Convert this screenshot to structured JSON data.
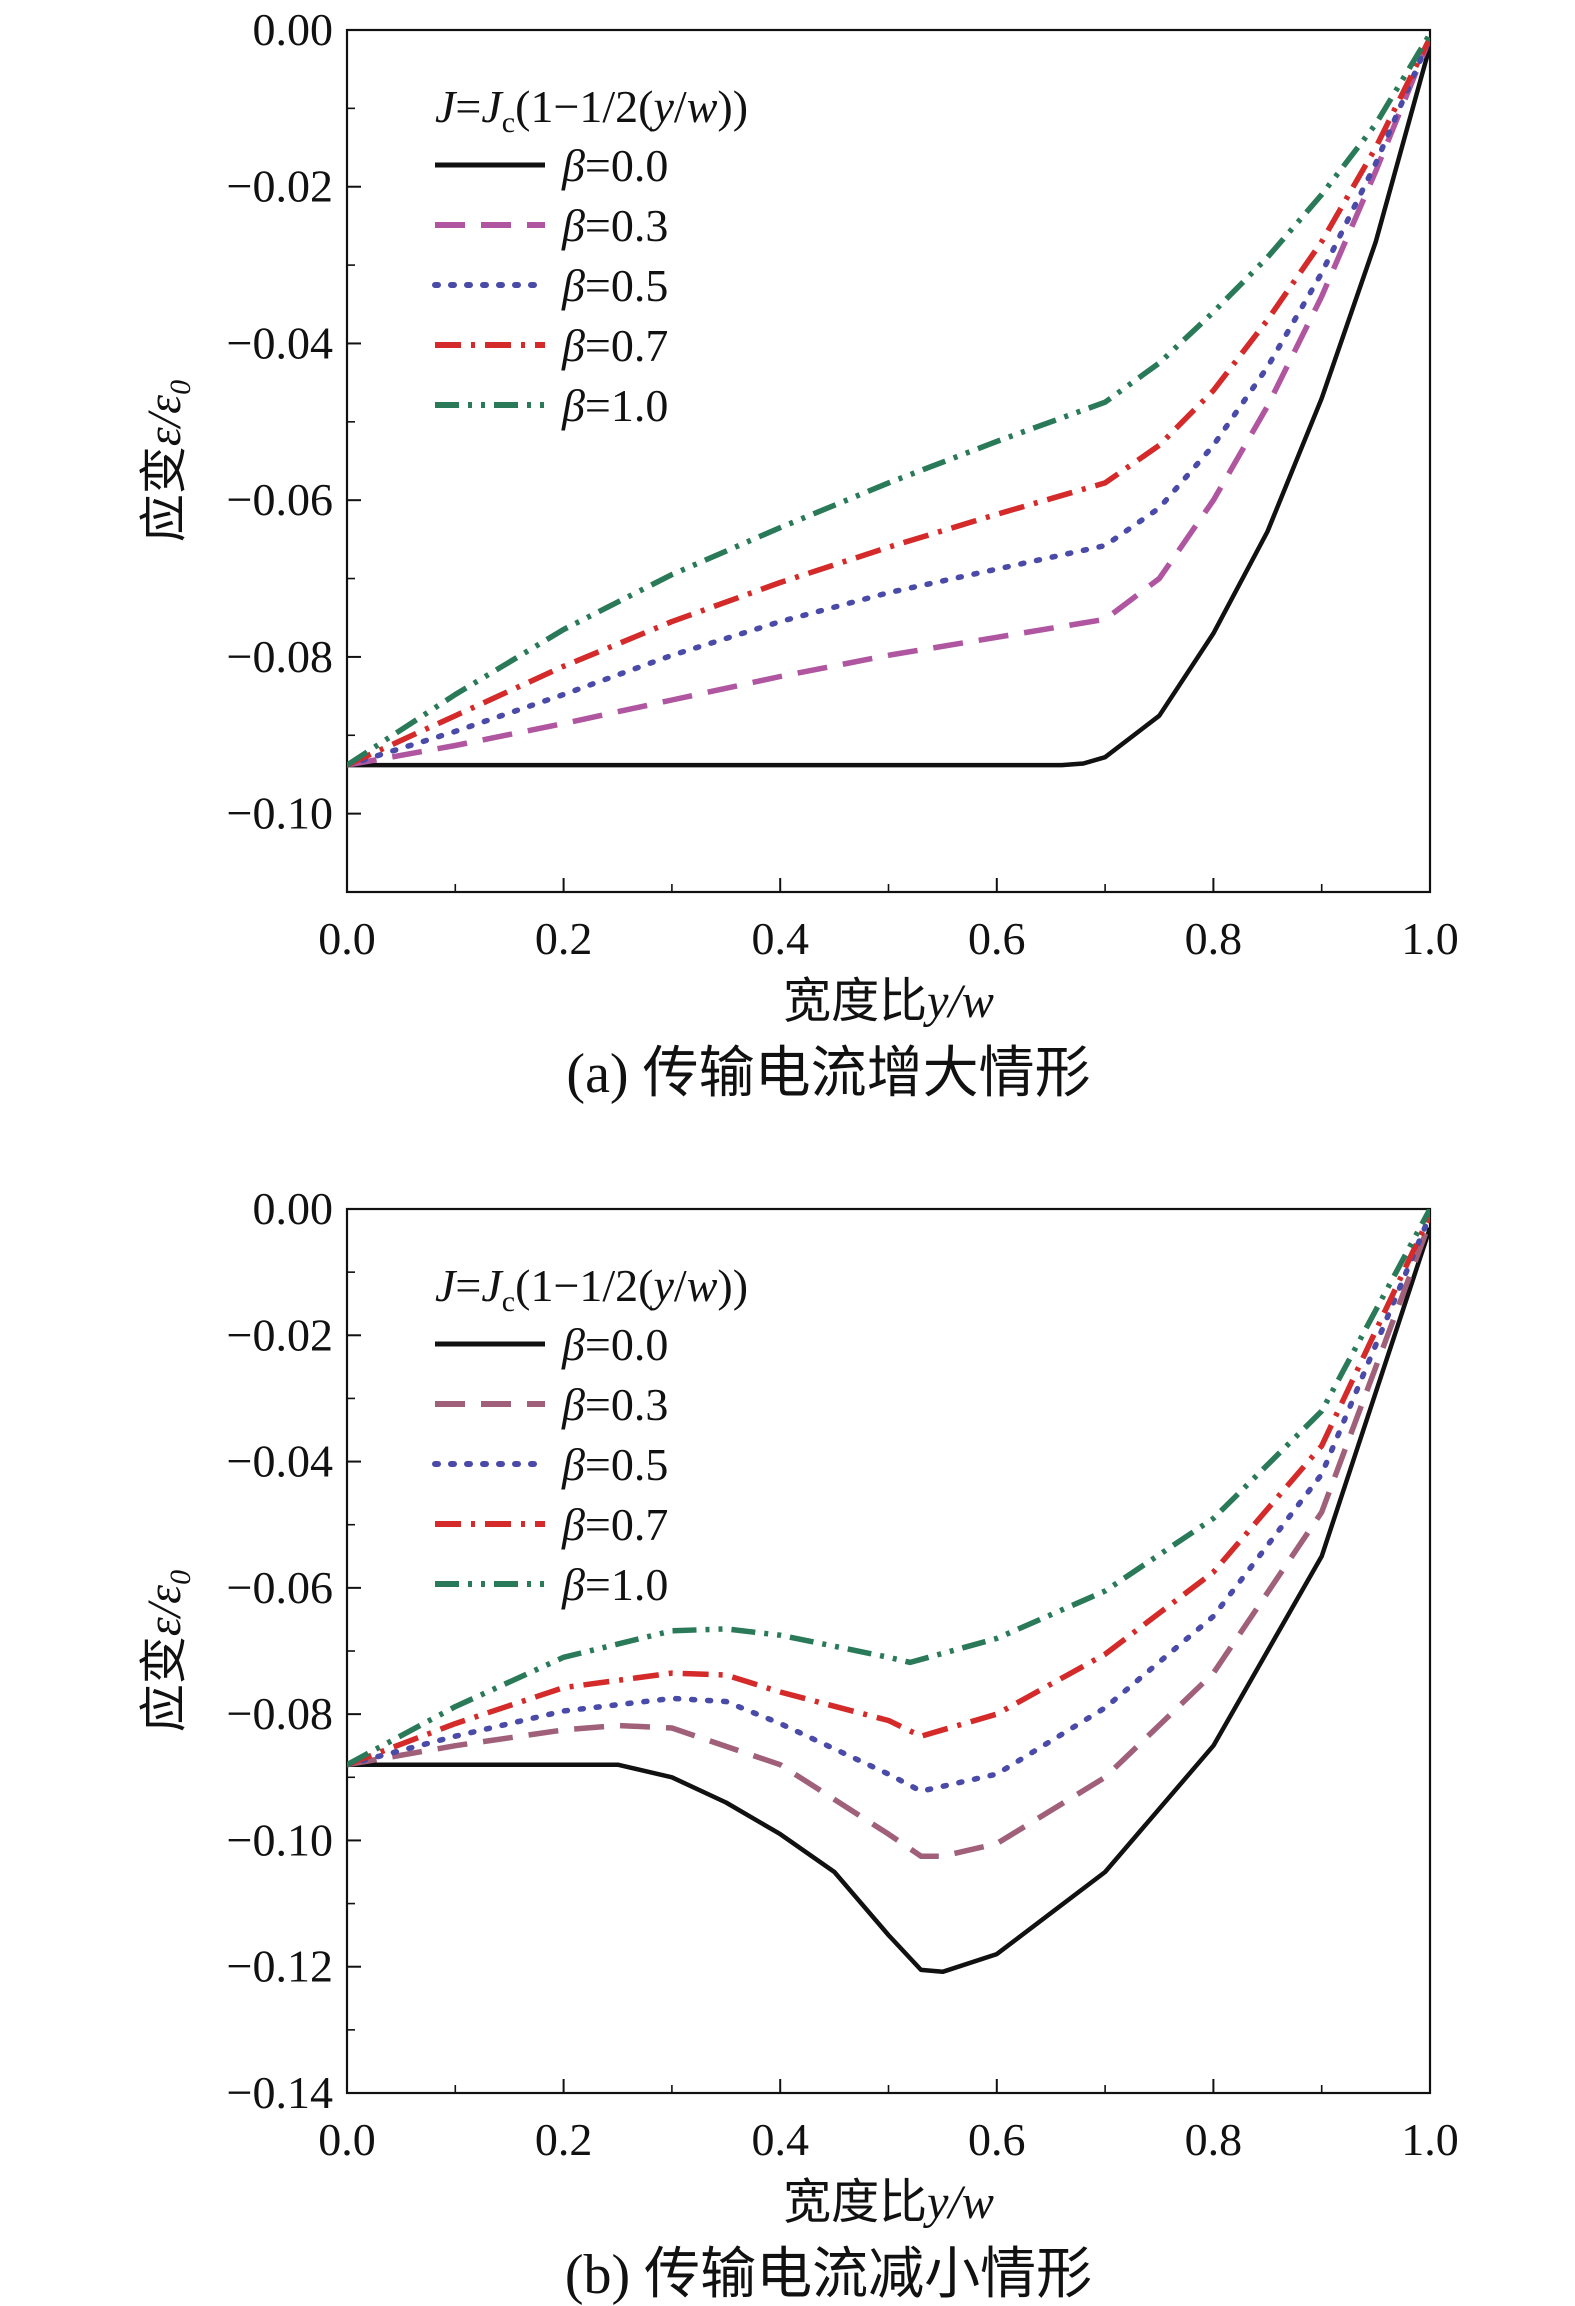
{
  "chart_data": [
    {
      "type": "line",
      "caption": "(a) 传输电流增大情形",
      "annotation": "J=Jc(1−1/2(y/w))",
      "annotation_parts": {
        "j": "J",
        "eq": "=",
        "jc": "J",
        "sub": "c",
        "rest_pre": "(1−1/2(",
        "y": "y",
        "slash": "/",
        "w": "w",
        "rest_post": "))"
      },
      "xlabel": {
        "prefix": "宽度比",
        "math": "y/w"
      },
      "ylabel": {
        "prefix": "应变",
        "math": "ε/ε",
        "sub": "0"
      },
      "xlim": [
        0,
        1
      ],
      "ylim": [
        -0.11,
        0
      ],
      "xticks": [
        0,
        0.2,
        0.4,
        0.6,
        0.8,
        1.0
      ],
      "xtick_labels": [
        "0.0",
        "0.2",
        "0.4",
        "0.6",
        "0.8",
        "1.0"
      ],
      "yticks": [
        0,
        -0.02,
        -0.04,
        -0.06,
        -0.08,
        -0.1
      ],
      "ytick_labels": [
        "0.00",
        "−0.02",
        "−0.04",
        "−0.06",
        "−0.08",
        "−0.10"
      ],
      "legend_position": "top-left",
      "series": [
        {
          "name": "β=0.0",
          "symbol": "β",
          "value": "=0.0",
          "color": "#111111",
          "style": "solid",
          "x": [
            0,
            0.2,
            0.4,
            0.6,
            0.66,
            0.68,
            0.7,
            0.75,
            0.8,
            0.85,
            0.9,
            0.95,
            1.0
          ],
          "y": [
            -0.0938,
            -0.0938,
            -0.0938,
            -0.0938,
            -0.0938,
            -0.0936,
            -0.0928,
            -0.0875,
            -0.077,
            -0.064,
            -0.047,
            -0.027,
            -0.002
          ]
        },
        {
          "name": "β=0.3",
          "symbol": "β",
          "value": "=0.3",
          "color": "#b0559f",
          "style": "dashed",
          "x": [
            0,
            0.1,
            0.2,
            0.3,
            0.4,
            0.5,
            0.6,
            0.7,
            0.75,
            0.8,
            0.85,
            0.9,
            0.95,
            1.0
          ],
          "y": [
            -0.0938,
            -0.0913,
            -0.0885,
            -0.0855,
            -0.0825,
            -0.0798,
            -0.0775,
            -0.0752,
            -0.07,
            -0.06,
            -0.048,
            -0.034,
            -0.018,
            -0.001
          ]
        },
        {
          "name": "β=0.5",
          "symbol": "β",
          "value": "=0.5",
          "color": "#4a4aa8",
          "style": "dotted",
          "x": [
            0,
            0.1,
            0.2,
            0.3,
            0.4,
            0.5,
            0.6,
            0.7,
            0.75,
            0.8,
            0.85,
            0.9,
            0.95,
            1.0
          ],
          "y": [
            -0.0938,
            -0.0895,
            -0.0848,
            -0.0798,
            -0.0755,
            -0.0718,
            -0.0688,
            -0.0658,
            -0.061,
            -0.053,
            -0.043,
            -0.031,
            -0.017,
            -0.001
          ]
        },
        {
          "name": "β=0.7",
          "symbol": "β",
          "value": "=0.7",
          "color": "#d42a2a",
          "style": "dashdot",
          "x": [
            0,
            0.1,
            0.2,
            0.3,
            0.4,
            0.5,
            0.6,
            0.7,
            0.75,
            0.8,
            0.85,
            0.9,
            0.95,
            1.0
          ],
          "y": [
            -0.0938,
            -0.0875,
            -0.0812,
            -0.0755,
            -0.0705,
            -0.066,
            -0.0618,
            -0.0578,
            -0.053,
            -0.046,
            -0.037,
            -0.027,
            -0.015,
            -0.001
          ]
        },
        {
          "name": "β=1.0",
          "symbol": "β",
          "value": "=1.0",
          "color": "#2a7a5a",
          "style": "dashdotdot",
          "x": [
            0,
            0.1,
            0.2,
            0.3,
            0.4,
            0.5,
            0.6,
            0.7,
            0.75,
            0.8,
            0.85,
            0.9,
            0.95,
            1.0
          ],
          "y": [
            -0.0938,
            -0.0848,
            -0.0765,
            -0.0695,
            -0.0635,
            -0.0578,
            -0.0525,
            -0.0475,
            -0.0425,
            -0.036,
            -0.029,
            -0.021,
            -0.012,
            -0.0005
          ]
        }
      ]
    },
    {
      "type": "line",
      "caption": "(b) 传输电流减小情形",
      "annotation": "J=Jc(1−1/2(y/w))",
      "annotation_parts": {
        "j": "J",
        "eq": "=",
        "jc": "J",
        "sub": "c",
        "rest_pre": "(1−1/2(",
        "y": "y",
        "slash": "/",
        "w": "w",
        "rest_post": "))"
      },
      "xlabel": {
        "prefix": "宽度比",
        "math": "y/w"
      },
      "ylabel": {
        "prefix": "应变",
        "math": "ε/ε",
        "sub": "0"
      },
      "xlim": [
        0,
        1
      ],
      "ylim": [
        -0.14,
        0
      ],
      "xticks": [
        0,
        0.2,
        0.4,
        0.6,
        0.8,
        1.0
      ],
      "xtick_labels": [
        "0.0",
        "0.2",
        "0.4",
        "0.6",
        "0.8",
        "1.0"
      ],
      "yticks": [
        0,
        -0.02,
        -0.04,
        -0.06,
        -0.08,
        -0.1,
        -0.12,
        -0.14
      ],
      "ytick_labels": [
        "0.00",
        "−0.02",
        "−0.04",
        "−0.06",
        "−0.08",
        "−0.10",
        "−0.12",
        "−0.14"
      ],
      "legend_position": "top-left",
      "series": [
        {
          "name": "β=0.0",
          "symbol": "β",
          "value": "=0.0",
          "color": "#111111",
          "style": "solid",
          "x": [
            0,
            0.1,
            0.2,
            0.25,
            0.3,
            0.35,
            0.4,
            0.45,
            0.5,
            0.53,
            0.55,
            0.6,
            0.7,
            0.8,
            0.9,
            1.0
          ],
          "y": [
            -0.088,
            -0.088,
            -0.088,
            -0.088,
            -0.09,
            -0.094,
            -0.099,
            -0.105,
            -0.115,
            -0.1205,
            -0.1208,
            -0.118,
            -0.105,
            -0.085,
            -0.055,
            -0.003
          ]
        },
        {
          "name": "β=0.3",
          "symbol": "β",
          "value": "=0.3",
          "color": "#a0607a",
          "style": "dashed",
          "x": [
            0,
            0.1,
            0.2,
            0.25,
            0.3,
            0.4,
            0.5,
            0.53,
            0.55,
            0.6,
            0.7,
            0.8,
            0.9,
            1.0
          ],
          "y": [
            -0.088,
            -0.085,
            -0.0825,
            -0.0818,
            -0.0822,
            -0.088,
            -0.099,
            -0.1025,
            -0.1025,
            -0.1005,
            -0.09,
            -0.0735,
            -0.048,
            -0.002
          ]
        },
        {
          "name": "β=0.5",
          "symbol": "β",
          "value": "=0.5",
          "color": "#4a4aa8",
          "style": "dotted",
          "x": [
            0,
            0.1,
            0.2,
            0.3,
            0.35,
            0.4,
            0.5,
            0.53,
            0.6,
            0.7,
            0.8,
            0.9,
            1.0
          ],
          "y": [
            -0.088,
            -0.0835,
            -0.0795,
            -0.0775,
            -0.078,
            -0.0815,
            -0.0895,
            -0.0922,
            -0.0895,
            -0.079,
            -0.0645,
            -0.042,
            -0.001
          ]
        },
        {
          "name": "β=0.7",
          "symbol": "β",
          "value": "=0.7",
          "color": "#d42a2a",
          "style": "dashdot",
          "x": [
            0,
            0.1,
            0.2,
            0.3,
            0.35,
            0.4,
            0.5,
            0.53,
            0.6,
            0.7,
            0.8,
            0.9,
            1.0
          ],
          "y": [
            -0.088,
            -0.0815,
            -0.0758,
            -0.0735,
            -0.0738,
            -0.0765,
            -0.081,
            -0.0835,
            -0.08,
            -0.0705,
            -0.0575,
            -0.0375,
            -0.001
          ]
        },
        {
          "name": "β=1.0",
          "symbol": "β",
          "value": "=1.0",
          "color": "#2a7a5a",
          "style": "dashdotdot",
          "x": [
            0,
            0.1,
            0.2,
            0.3,
            0.35,
            0.4,
            0.5,
            0.52,
            0.6,
            0.7,
            0.8,
            0.9,
            1.0
          ],
          "y": [
            -0.088,
            -0.0788,
            -0.071,
            -0.0668,
            -0.0665,
            -0.0675,
            -0.071,
            -0.0718,
            -0.068,
            -0.0605,
            -0.049,
            -0.032,
            0.0
          ]
        }
      ]
    }
  ]
}
